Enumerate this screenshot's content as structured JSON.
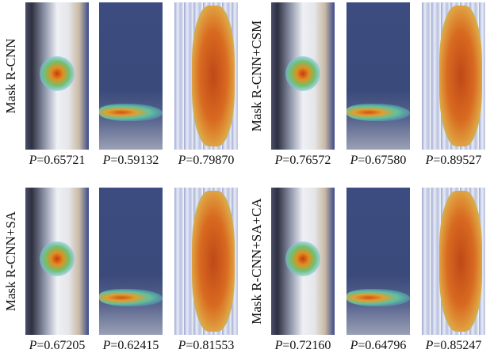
{
  "panels": [
    {
      "label": "Mask R-CNN",
      "captions": [
        "P=0.65721",
        "P=0.59132",
        "P=0.79870"
      ]
    },
    {
      "label": "Mask R-CNN+CSM",
      "captions": [
        "P=0.76572",
        "P=0.67580",
        "P=0.89527"
      ]
    },
    {
      "label": "Mask R-CNN+SA",
      "captions": [
        "P=0.67205",
        "P=0.62415",
        "P=0.81553"
      ]
    },
    {
      "label": "Mask R-CNN+SA+CA",
      "captions": [
        "P=0.72160",
        "P=0.64796",
        "P=0.85247"
      ]
    }
  ]
}
